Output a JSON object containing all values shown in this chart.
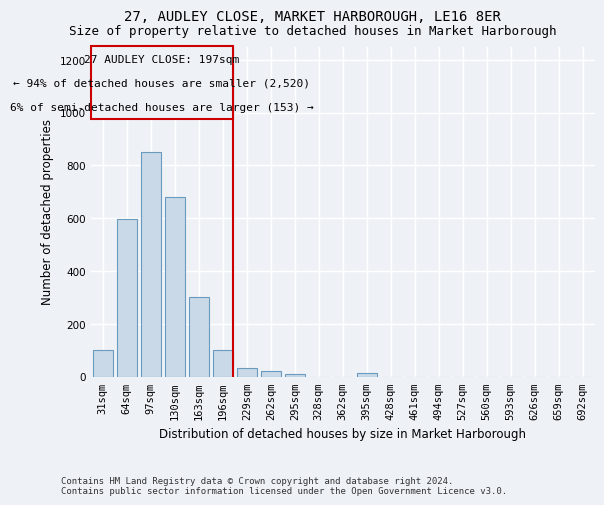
{
  "title": "27, AUDLEY CLOSE, MARKET HARBOROUGH, LE16 8ER",
  "subtitle": "Size of property relative to detached houses in Market Harborough",
  "xlabel": "Distribution of detached houses by size in Market Harborough",
  "ylabel": "Number of detached properties",
  "footer_line1": "Contains HM Land Registry data © Crown copyright and database right 2024.",
  "footer_line2": "Contains public sector information licensed under the Open Government Licence v3.0.",
  "bin_labels": [
    "31sqm",
    "64sqm",
    "97sqm",
    "130sqm",
    "163sqm",
    "196sqm",
    "229sqm",
    "262sqm",
    "295sqm",
    "328sqm",
    "362sqm",
    "395sqm",
    "428sqm",
    "461sqm",
    "494sqm",
    "527sqm",
    "560sqm",
    "593sqm",
    "626sqm",
    "659sqm",
    "692sqm"
  ],
  "bar_values": [
    100,
    595,
    850,
    680,
    300,
    100,
    32,
    22,
    10,
    0,
    0,
    12,
    0,
    0,
    0,
    0,
    0,
    0,
    0,
    0,
    0
  ],
  "bar_color": "#c9d9e8",
  "bar_edgecolor": "#6a9bbf",
  "annotation_text_line1": "27 AUDLEY CLOSE: 197sqm",
  "annotation_text_line2": "← 94% of detached houses are smaller (2,520)",
  "annotation_text_line3": "6% of semi-detached houses are larger (153) →",
  "annotation_box_color": "#cc0000",
  "vline_color": "#cc0000",
  "ylim": [
    0,
    1250
  ],
  "yticks": [
    0,
    200,
    400,
    600,
    800,
    1000,
    1200
  ],
  "background_color": "#eef2f7",
  "grid_color": "#ffffff",
  "title_fontsize": 10,
  "subtitle_fontsize": 9,
  "axis_label_fontsize": 8.5,
  "tick_fontsize": 7.5,
  "annotation_fontsize": 8
}
